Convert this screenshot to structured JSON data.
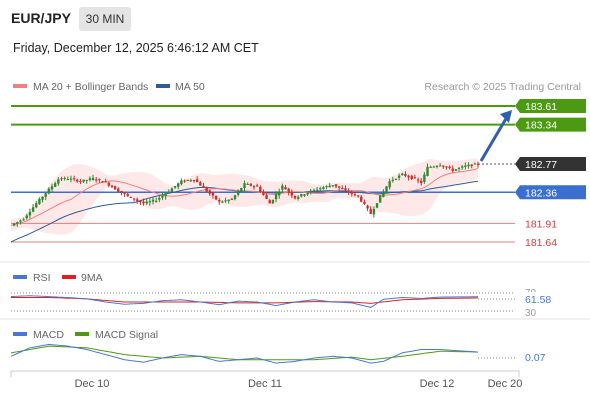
{
  "header": {
    "symbol": "EUR/JPY",
    "timeframe": "30 MIN",
    "datetime": "Friday, December 12, 2025 6:46:12 AM CET"
  },
  "legend": {
    "ma20": {
      "label": "MA 20 + Bollinger Bands",
      "color": "#f08080"
    },
    "ma50": {
      "label": "MA 50",
      "color": "#2e5c9a"
    },
    "credit": "Research © 2025 Trading Central"
  },
  "colors": {
    "green": "#4c9a12",
    "blue": "#3b6fcf",
    "red": "#e06060",
    "black": "#333333",
    "band": "#fde0e0",
    "candle_up": "#2f8a2f",
    "candle_down": "#c8302a"
  },
  "levels": [
    {
      "value": 183.61,
      "label": "183.61",
      "kind": "green"
    },
    {
      "value": 183.34,
      "label": "183.34",
      "kind": "green"
    },
    {
      "value": 182.77,
      "label": "182.77",
      "kind": "current"
    },
    {
      "value": 182.36,
      "label": "182.36",
      "kind": "blue"
    },
    {
      "value": 181.91,
      "label": "181.91",
      "kind": "red"
    },
    {
      "value": 181.64,
      "label": "181.64",
      "kind": "red"
    }
  ],
  "rsi": {
    "label": "RSI",
    "ma_label": "9MA",
    "value_label": "61.58",
    "level_70": "70",
    "level_30": "30"
  },
  "macd": {
    "label": "MACD",
    "signal_label": "MACD Signal",
    "value_label": "0.07"
  },
  "x_axis": {
    "ticks": [
      "Dec 10",
      "Dec 11",
      "Dec 12",
      "Dec 20"
    ]
  },
  "chart_data": {
    "type": "candlestick",
    "series": [
      {
        "name": "MA 20 + Bollinger Bands"
      },
      {
        "name": "MA 50"
      }
    ],
    "price_points": [
      [
        0,
        181.88
      ],
      [
        4,
        181.98
      ],
      [
        8,
        182.2
      ],
      [
        12,
        182.4
      ],
      [
        15,
        182.55
      ],
      [
        18,
        182.56
      ],
      [
        22,
        182.52
      ],
      [
        26,
        182.56
      ],
      [
        30,
        182.5
      ],
      [
        34,
        182.38
      ],
      [
        38,
        182.28
      ],
      [
        42,
        182.2
      ],
      [
        46,
        182.25
      ],
      [
        50,
        182.38
      ],
      [
        54,
        182.52
      ],
      [
        58,
        182.55
      ],
      [
        62,
        182.38
      ],
      [
        66,
        182.22
      ],
      [
        70,
        182.26
      ],
      [
        74,
        182.48
      ],
      [
        78,
        182.44
      ],
      [
        82,
        182.2
      ],
      [
        86,
        182.45
      ],
      [
        90,
        182.28
      ],
      [
        94,
        182.36
      ],
      [
        98,
        182.42
      ],
      [
        102,
        182.47
      ],
      [
        106,
        182.38
      ],
      [
        110,
        182.3
      ],
      [
        114,
        182.05
      ],
      [
        117,
        182.3
      ],
      [
        120,
        182.52
      ],
      [
        124,
        182.62
      ],
      [
        128,
        182.55
      ],
      [
        130,
        182.5
      ],
      [
        132,
        182.72
      ],
      [
        136,
        182.76
      ],
      [
        140,
        182.68
      ],
      [
        144,
        182.74
      ],
      [
        148,
        182.77
      ]
    ],
    "projection": {
      "from": 182.77,
      "to": 183.61
    },
    "rsi_points": [
      [
        0,
        62
      ],
      [
        6,
        64
      ],
      [
        12,
        62
      ],
      [
        18,
        60
      ],
      [
        24,
        57
      ],
      [
        30,
        50
      ],
      [
        36,
        45
      ],
      [
        42,
        47
      ],
      [
        48,
        53
      ],
      [
        54,
        55
      ],
      [
        60,
        50
      ],
      [
        66,
        44
      ],
      [
        72,
        52
      ],
      [
        78,
        50
      ],
      [
        84,
        42
      ],
      [
        90,
        50
      ],
      [
        96,
        55
      ],
      [
        102,
        50
      ],
      [
        108,
        48
      ],
      [
        114,
        38
      ],
      [
        118,
        56
      ],
      [
        124,
        60
      ],
      [
        130,
        58
      ],
      [
        136,
        61
      ],
      [
        148,
        61.58
      ]
    ],
    "rsi_ma_points": [
      [
        0,
        60
      ],
      [
        12,
        60
      ],
      [
        24,
        57
      ],
      [
        36,
        50
      ],
      [
        48,
        50
      ],
      [
        60,
        50
      ],
      [
        72,
        48
      ],
      [
        84,
        48
      ],
      [
        96,
        51
      ],
      [
        108,
        50
      ],
      [
        114,
        47
      ],
      [
        124,
        55
      ],
      [
        136,
        58
      ],
      [
        148,
        59
      ]
    ],
    "macd_points": [
      [
        0,
        0.02
      ],
      [
        6,
        0.12
      ],
      [
        12,
        0.16
      ],
      [
        18,
        0.14
      ],
      [
        24,
        0.1
      ],
      [
        30,
        0.04
      ],
      [
        36,
        -0.02
      ],
      [
        42,
        -0.05
      ],
      [
        48,
        0.0
      ],
      [
        54,
        0.04
      ],
      [
        60,
        0.02
      ],
      [
        66,
        -0.04
      ],
      [
        72,
        -0.02
      ],
      [
        78,
        0.0
      ],
      [
        84,
        -0.06
      ],
      [
        90,
        -0.04
      ],
      [
        96,
        0.0
      ],
      [
        102,
        0.02
      ],
      [
        108,
        0.0
      ],
      [
        114,
        -0.06
      ],
      [
        118,
        -0.04
      ],
      [
        124,
        0.06
      ],
      [
        130,
        0.1
      ],
      [
        136,
        0.1
      ],
      [
        148,
        0.07
      ]
    ],
    "macd_signal_points": [
      [
        0,
        0.06
      ],
      [
        12,
        0.14
      ],
      [
        24,
        0.12
      ],
      [
        36,
        0.04
      ],
      [
        48,
        0.0
      ],
      [
        60,
        0.02
      ],
      [
        72,
        -0.02
      ],
      [
        84,
        -0.02
      ],
      [
        96,
        -0.02
      ],
      [
        108,
        0.01
      ],
      [
        114,
        -0.02
      ],
      [
        124,
        0.02
      ],
      [
        136,
        0.08
      ],
      [
        148,
        0.07
      ]
    ]
  }
}
